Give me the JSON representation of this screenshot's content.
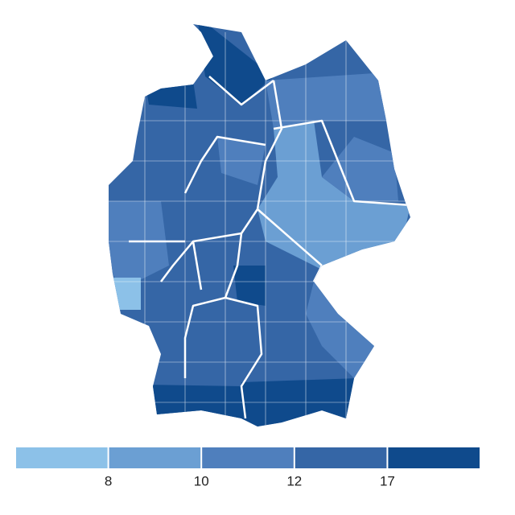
{
  "legend": {
    "colors": [
      "#8cc1e8",
      "#6b9fd3",
      "#4f7fbd",
      "#3566a6",
      "#0f4a8c"
    ],
    "thresholds": [
      8,
      10,
      12,
      17
    ]
  }
}
